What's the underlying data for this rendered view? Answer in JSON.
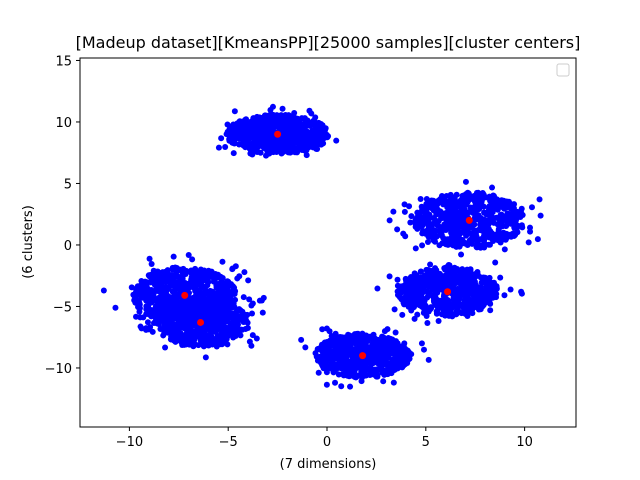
{
  "chart_data": {
    "type": "scatter",
    "title": "[Madeup dataset][KmeansPP][25000 samples][cluster centers]",
    "xlabel": "(7 dimensions)",
    "ylabel": "(6 clusters)",
    "xlim": [
      -12.5,
      12.6
    ],
    "ylim": [
      -14.8,
      15.2
    ],
    "xticks": [
      -10,
      -5,
      0,
      5,
      10
    ],
    "yticks": [
      -10,
      -5,
      0,
      5,
      10,
      15
    ],
    "grid": false,
    "legend": {
      "placement": "top-right",
      "entries": []
    },
    "points_color": "#0000ff",
    "centers_color": "#ff0000",
    "clusters": [
      {
        "center": [
          -2.5,
          9.0
        ],
        "spread": [
          2.6,
          1.6
        ],
        "outer": [
          3.9,
          2.5
        ]
      },
      {
        "center": [
          -7.2,
          -4.1
        ],
        "spread": [
          2.6,
          2.3
        ],
        "outer": [
          4.2,
          3.5
        ]
      },
      {
        "center": [
          -6.4,
          -6.3
        ],
        "spread": [
          2.4,
          2.0
        ],
        "outer": [
          3.8,
          3.0
        ]
      },
      {
        "center": [
          1.8,
          -9.0
        ],
        "spread": [
          2.4,
          1.8
        ],
        "outer": [
          3.8,
          2.8
        ]
      },
      {
        "center": [
          6.1,
          -3.8
        ],
        "spread": [
          2.6,
          2.0
        ],
        "outer": [
          4.0,
          3.0
        ]
      },
      {
        "center": [
          7.2,
          2.0
        ],
        "spread": [
          2.8,
          2.3
        ],
        "outer": [
          4.2,
          3.4
        ]
      }
    ],
    "centers": [
      {
        "x": -2.5,
        "y": 9.0
      },
      {
        "x": -7.2,
        "y": -4.1
      },
      {
        "x": -6.4,
        "y": -6.3
      },
      {
        "x": 1.8,
        "y": -9.0
      },
      {
        "x": 6.1,
        "y": -3.8
      },
      {
        "x": 7.2,
        "y": 2.0
      }
    ]
  }
}
